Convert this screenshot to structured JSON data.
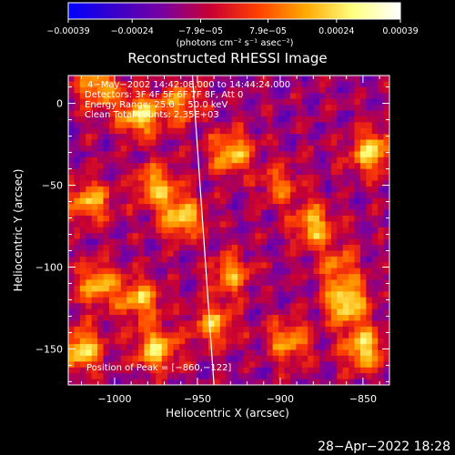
{
  "chart_data": {
    "type": "heatmap",
    "title": "Reconstructed RHESSI Image",
    "xlabel": "Heliocentric X (arcsec)",
    "ylabel": "Heliocentric Y (arcsec)",
    "xlim": [
      -1028,
      -834
    ],
    "ylim": [
      -172,
      17
    ],
    "x_ticks": [
      -1000,
      -950,
      -900,
      -850
    ],
    "x_tick_labels": [
      "−1000",
      "−950",
      "−900",
      "−850"
    ],
    "y_ticks": [
      0,
      -50,
      -100,
      -150
    ],
    "y_tick_labels": [
      "0",
      "−50",
      "−100",
      "−150"
    ],
    "info_lines": [
      "4−May−2002 14:42:08.000 to 14:44:24.000",
      "Detectors: 3F 4F 5F 6F 7F 8F, Att 0",
      "Energy Range: 25.0 − 50.0 keV",
      "Clean    Total counts: 2.35E+03"
    ],
    "peak_label": "Position of Peak = [−860,−122]",
    "peak_position": [
      -860,
      -122
    ],
    "colorbar": {
      "range": [
        -0.00039,
        0.00039
      ],
      "tick_values": [
        -0.00039,
        -0.00024,
        -7.9e-05,
        7.9e-05,
        0.00024,
        0.00039
      ],
      "tick_labels": [
        "−0.00039",
        "−0.00024",
        "−7.9e−05",
        "7.9e−05",
        "0.00024",
        "0.00039"
      ],
      "units": "(photons cm⁻² s⁻¹ asec⁻²)",
      "colors": [
        "#0000ff",
        "#3a00c8",
        "#7a00a0",
        "#c80032",
        "#ff4000",
        "#ffaa00",
        "#ffff80",
        "#ffffff"
      ]
    },
    "limb_line": {
      "from": [
        -953,
        17
      ],
      "to": [
        -940,
        -172
      ]
    },
    "hotspots": [
      {
        "x": -1010,
        "y": 10,
        "v": 0.0003
      },
      {
        "x": -985,
        "y": -8,
        "v": 0.00036
      },
      {
        "x": -960,
        "y": 0,
        "v": 0.00025
      },
      {
        "x": -930,
        "y": -30,
        "v": 0.00032
      },
      {
        "x": -975,
        "y": -50,
        "v": 0.0003
      },
      {
        "x": -1015,
        "y": -60,
        "v": 0.0003
      },
      {
        "x": -960,
        "y": -70,
        "v": 0.00036
      },
      {
        "x": -900,
        "y": -50,
        "v": 0.0002
      },
      {
        "x": -880,
        "y": -75,
        "v": 0.00032
      },
      {
        "x": -845,
        "y": -30,
        "v": 0.00035
      },
      {
        "x": -865,
        "y": -100,
        "v": 0.00022
      },
      {
        "x": -1010,
        "y": -110,
        "v": 0.00032
      },
      {
        "x": -985,
        "y": -120,
        "v": 0.0003
      },
      {
        "x": -940,
        "y": -135,
        "v": 0.00028
      },
      {
        "x": -975,
        "y": -150,
        "v": 0.00036
      },
      {
        "x": -1020,
        "y": -150,
        "v": 0.00036
      },
      {
        "x": -860,
        "y": -122,
        "v": 0.00039
      },
      {
        "x": -850,
        "y": -150,
        "v": 0.00036
      },
      {
        "x": -895,
        "y": -145,
        "v": 0.00028
      },
      {
        "x": -930,
        "y": -105,
        "v": 0.00026
      }
    ]
  },
  "footer": {
    "timestamp": "28−Apr−2022 18:28"
  }
}
